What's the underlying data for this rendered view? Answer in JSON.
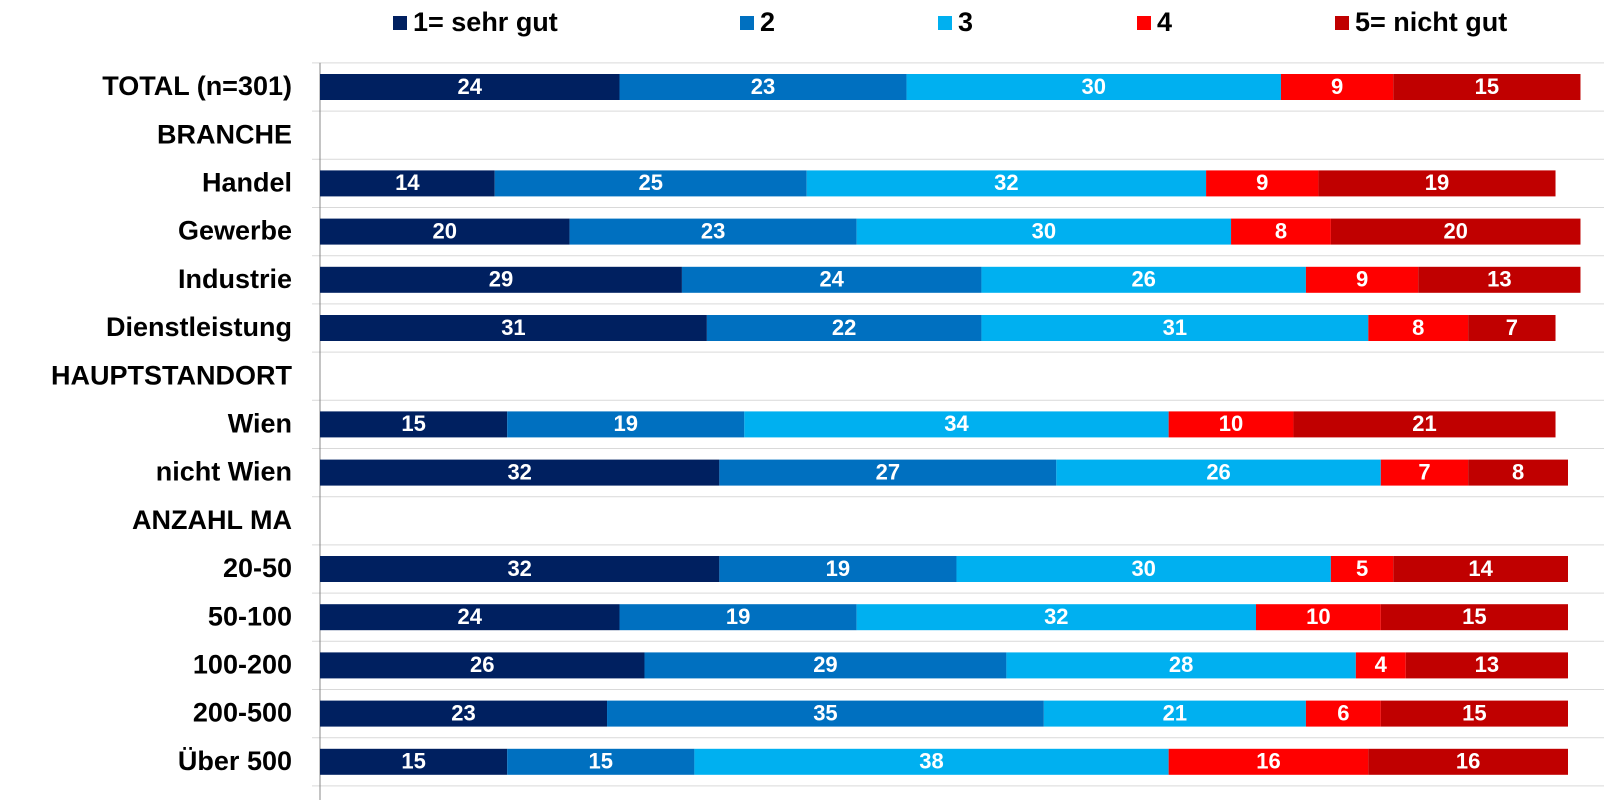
{
  "chart_data": {
    "type": "stacked-bar-horizontal",
    "categories": [
      "TOTAL (n=301)",
      "BRANCHE",
      "Handel",
      "Gewerbe",
      "Industrie",
      "Dienstleistung",
      "HAUPTSTANDORT",
      "Wien",
      "nicht Wien",
      "ANZAHL MA",
      "20-50",
      "50-100",
      "100-200",
      "200-500",
      "Über 500"
    ],
    "xlim": [
      0,
      100
    ],
    "legend": "top",
    "series": [
      {
        "name": "1= sehr gut",
        "color": "#002060",
        "values": [
          24,
          null,
          14,
          20,
          29,
          31,
          null,
          15,
          32,
          null,
          32,
          24,
          26,
          23,
          15
        ]
      },
      {
        "name": "2",
        "color": "#0070c0",
        "values": [
          23,
          null,
          25,
          23,
          24,
          22,
          null,
          19,
          27,
          null,
          19,
          19,
          29,
          35,
          15
        ]
      },
      {
        "name": "3",
        "color": "#00b0f0",
        "values": [
          30,
          null,
          32,
          30,
          26,
          31,
          null,
          34,
          26,
          null,
          30,
          32,
          28,
          21,
          38
        ]
      },
      {
        "name": "4",
        "color": "#ff0000",
        "values": [
          9,
          null,
          9,
          8,
          9,
          8,
          null,
          10,
          7,
          null,
          5,
          10,
          4,
          6,
          16
        ]
      },
      {
        "name": "5= nicht gut",
        "color": "#c00000",
        "values": [
          15,
          null,
          19,
          20,
          13,
          7,
          null,
          21,
          8,
          null,
          14,
          15,
          13,
          15,
          16
        ]
      }
    ]
  }
}
